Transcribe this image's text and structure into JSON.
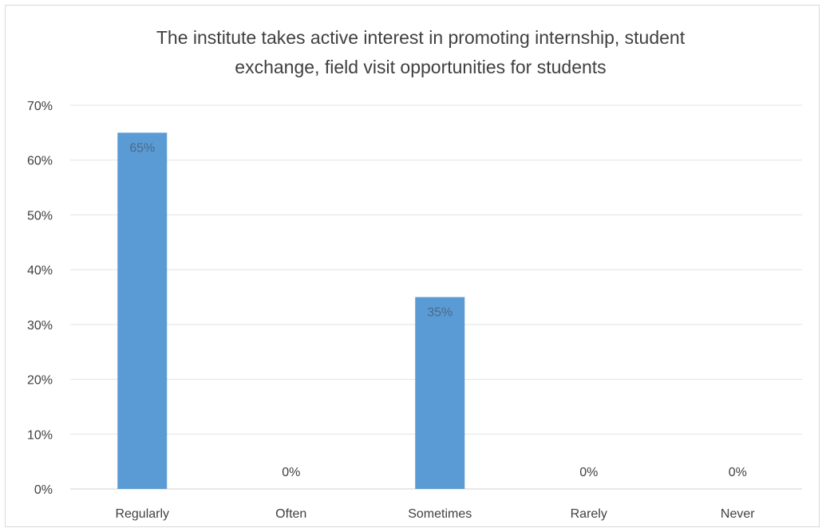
{
  "chart_data": {
    "type": "bar",
    "title_lines": [
      "The institute takes active interest in promoting internship, student",
      "exchange, field visit opportunities for students"
    ],
    "categories": [
      "Regularly",
      "Often",
      "Sometimes",
      "Rarely",
      "Never"
    ],
    "values": [
      65,
      0,
      35,
      0,
      0
    ],
    "data_labels": [
      "65%",
      "0%",
      "35%",
      "0%",
      "0%"
    ],
    "y_ticks": [
      "0%",
      "10%",
      "20%",
      "30%",
      "40%",
      "50%",
      "60%",
      "70%"
    ],
    "ylim": [
      0,
      70
    ],
    "grid": true,
    "legend": "none",
    "bar_color": "#5b9bd5",
    "label_color_inside": "#4a6a84",
    "label_color_outside": "#404040",
    "axis_text_color": "#404040",
    "grid_color": "#e3e3e3"
  }
}
